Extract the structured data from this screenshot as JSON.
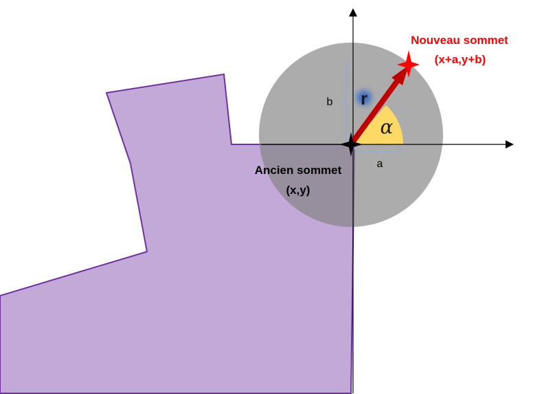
{
  "labels": {
    "new_vertex_line1": "Nouveau sommet",
    "new_vertex_line2": "(x+a,y+b)",
    "old_vertex_line1": "Ancien sommet",
    "old_vertex_line2": "(x,y)",
    "radius": "r",
    "angle": "α",
    "dx": "a",
    "dy": "b"
  },
  "colors": {
    "polygon_fill": "#c3a9d8",
    "polygon_stroke": "#7030a0",
    "disk_fill": "#a6a6a6",
    "angle_fill": "#ffd966",
    "vector": "#c00000",
    "star_new": "#ff0000",
    "star_old": "#000000",
    "brace": "#8ea9db",
    "label_red": "#ff0000",
    "radius_glow": "#4472c4"
  },
  "icons": {
    "new_vertex": "red-star-icon",
    "old_vertex": "black-star-icon"
  }
}
